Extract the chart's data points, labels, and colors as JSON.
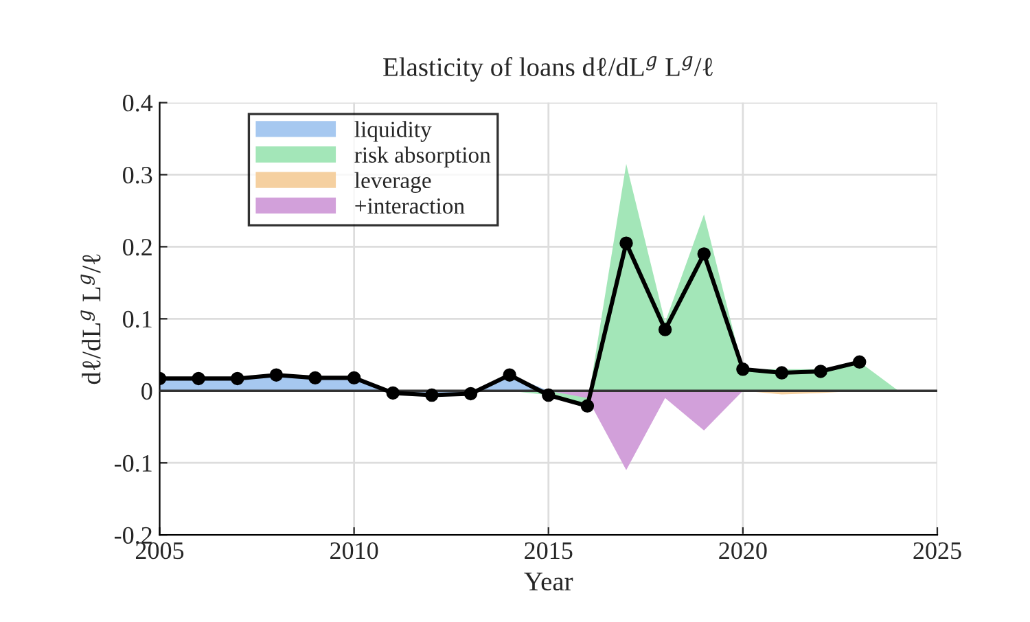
{
  "chart_data": {
    "type": "area",
    "title": "Elasticity of loans dℓ/dL$^{g}$ L$^{g}$/ℓ",
    "xlabel": "Year",
    "ylabel": "dℓ/dL$^{g}$ L$^{g}$/ℓ",
    "x": [
      2005,
      2006,
      2007,
      2008,
      2009,
      2010,
      2011,
      2012,
      2013,
      2014,
      2015,
      2016,
      2017,
      2018,
      2019,
      2020,
      2021,
      2022,
      2023,
      2024
    ],
    "series": [
      {
        "name": "liquidity",
        "color": "#a6c8f0",
        "values": [
          0.017,
          0.017,
          0.017,
          0.022,
          0.018,
          0.018,
          -0.003,
          -0.003,
          -0.003,
          0.022,
          0,
          0,
          0,
          0,
          0,
          0,
          0,
          0,
          0,
          0
        ]
      },
      {
        "name": "risk absorption",
        "color": "#a3e6b8",
        "values": [
          0,
          0,
          0,
          0,
          0,
          0,
          0,
          0,
          0,
          0,
          -0.006,
          -0.02,
          0.315,
          0.095,
          0.245,
          0.03,
          0.03,
          0.03,
          0.04,
          0
        ]
      },
      {
        "name": "leverage",
        "color": "#f5d0a0",
        "values": [
          0,
          0,
          0,
          0,
          0,
          0,
          0,
          0,
          0,
          0,
          0,
          0,
          0,
          0,
          0,
          0,
          -0.005,
          -0.003,
          0,
          0
        ]
      },
      {
        "name": "+interaction",
        "color": "#d2a0da",
        "values": [
          0,
          0,
          0,
          0,
          0,
          0,
          0,
          0,
          0,
          0,
          0,
          -0.01,
          -0.11,
          -0.01,
          -0.055,
          0,
          0,
          0,
          0,
          0
        ]
      },
      {
        "type": "line",
        "color": "#000000",
        "marker": "circle",
        "x": [
          2005,
          2006,
          2007,
          2008,
          2009,
          2010,
          2011,
          2012,
          2013,
          2014,
          2015,
          2016,
          2017,
          2018,
          2019,
          2020,
          2021,
          2022,
          2023
        ],
        "values": [
          0.017,
          0.017,
          0.017,
          0.022,
          0.018,
          0.018,
          -0.003,
          -0.006,
          -0.004,
          0.022,
          -0.006,
          -0.021,
          0.205,
          0.085,
          0.19,
          0.03,
          0.025,
          0.027,
          0.04
        ]
      }
    ],
    "xlim": [
      2005,
      2025
    ],
    "xticks": [
      2005,
      2010,
      2015,
      2020,
      2025
    ],
    "ylim": [
      -0.2,
      0.4
    ],
    "yticks": [
      -0.2,
      -0.1,
      0,
      0.1,
      0.2,
      0.3,
      0.4
    ],
    "ref_lines": [
      {
        "axis": "y",
        "value": 0,
        "color": "#333333"
      }
    ],
    "grid": true,
    "legend": "top left"
  }
}
